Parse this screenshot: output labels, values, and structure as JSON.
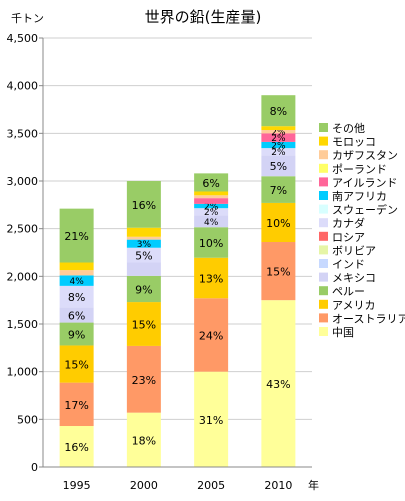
{
  "chart_data": {
    "type": "bar",
    "stacked": true,
    "title": "世界の鉛(生産量)",
    "ylabel": "千トン",
    "xlabel": "年",
    "ylim": [
      0,
      4500
    ],
    "yticks": [
      0,
      500,
      1000,
      1500,
      2000,
      2500,
      3000,
      3500,
      4000,
      4500
    ],
    "ytick_labels": [
      "0",
      "500",
      "1,000",
      "1,500",
      "2,000",
      "2,500",
      "3,000",
      "3,500",
      "4,000",
      "4,500"
    ],
    "grid": true,
    "legend_position": "right",
    "categories": [
      "1995",
      "2000",
      "2005",
      "2010"
    ],
    "series": [
      {
        "name": "中国",
        "color": "#FFFF99",
        "values": [
          430,
          570,
          1000,
          1750
        ],
        "labels": [
          "16%",
          "18%",
          "31%",
          "43%"
        ]
      },
      {
        "name": "オーストラリア",
        "color": "#FF9966",
        "values": [
          455,
          700,
          770,
          610
        ],
        "labels": [
          "17%",
          "23%",
          "24%",
          "15%"
        ]
      },
      {
        "name": "アメリカ",
        "color": "#FFCC00",
        "values": [
          390,
          460,
          425,
          410
        ],
        "labels": [
          "15%",
          "15%",
          "13%",
          "10%"
        ]
      },
      {
        "name": "ペルー",
        "color": "#99CC66",
        "values": [
          240,
          275,
          320,
          280
        ],
        "labels": [
          "9%",
          "9%",
          "10%",
          "7%"
        ]
      },
      {
        "name": "メキシコ",
        "color": "#D3D3F5",
        "values": [
          160,
          140,
          125,
          220
        ],
        "labels": [
          "6%",
          "",
          "4%",
          "5%"
        ]
      },
      {
        "name": "インド",
        "color": "#C7D9FF",
        "values": [
          0,
          0,
          0,
          0
        ],
        "labels": [
          "",
          "",
          "",
          ""
        ]
      },
      {
        "name": "ボリビア",
        "color": "#E6F5A6",
        "values": [
          0,
          0,
          0,
          0
        ],
        "labels": [
          "",
          "",
          "",
          ""
        ]
      },
      {
        "name": "ロシア",
        "color": "#FF6666",
        "values": [
          0,
          0,
          0,
          0
        ],
        "labels": [
          "",
          "",
          "",
          ""
        ]
      },
      {
        "name": "カナダ",
        "color": "#DCDCFA",
        "values": [
          225,
          155,
          75,
          75
        ],
        "labels": [
          "8%",
          "5%",
          "2%",
          "2%"
        ]
      },
      {
        "name": "スウェーデン",
        "color": "#D8FFFF",
        "values": [
          0,
          0,
          0,
          0
        ],
        "labels": [
          "",
          "",
          "",
          ""
        ]
      },
      {
        "name": "南アフリカ",
        "color": "#00CCFF",
        "values": [
          110,
          85,
          45,
          65
        ],
        "labels": [
          "4%",
          "3%",
          "2%",
          "2%"
        ]
      },
      {
        "name": "アイルランド",
        "color": "#FF6699",
        "values": [
          0,
          0,
          60,
          90
        ],
        "labels": [
          "",
          "",
          "",
          "2%"
        ]
      },
      {
        "name": "ポーランド",
        "color": "#FFFF66",
        "values": [
          0,
          0,
          0,
          0
        ],
        "labels": [
          "",
          "",
          "",
          ""
        ]
      },
      {
        "name": "カザフスタン",
        "color": "#FFCC99",
        "values": [
          55,
          30,
          30,
          35
        ],
        "labels": [
          "",
          "",
          "",
          "2%"
        ]
      },
      {
        "name": "モロッコ",
        "color": "#FFD700",
        "values": [
          80,
          95,
          40,
          40
        ],
        "labels": [
          "",
          "",
          "",
          ""
        ]
      },
      {
        "name": "その他",
        "color": "#99CC66",
        "values": [
          565,
          490,
          190,
          325
        ],
        "labels": [
          "21%",
          "16%",
          "6%",
          "8%"
        ]
      }
    ]
  }
}
